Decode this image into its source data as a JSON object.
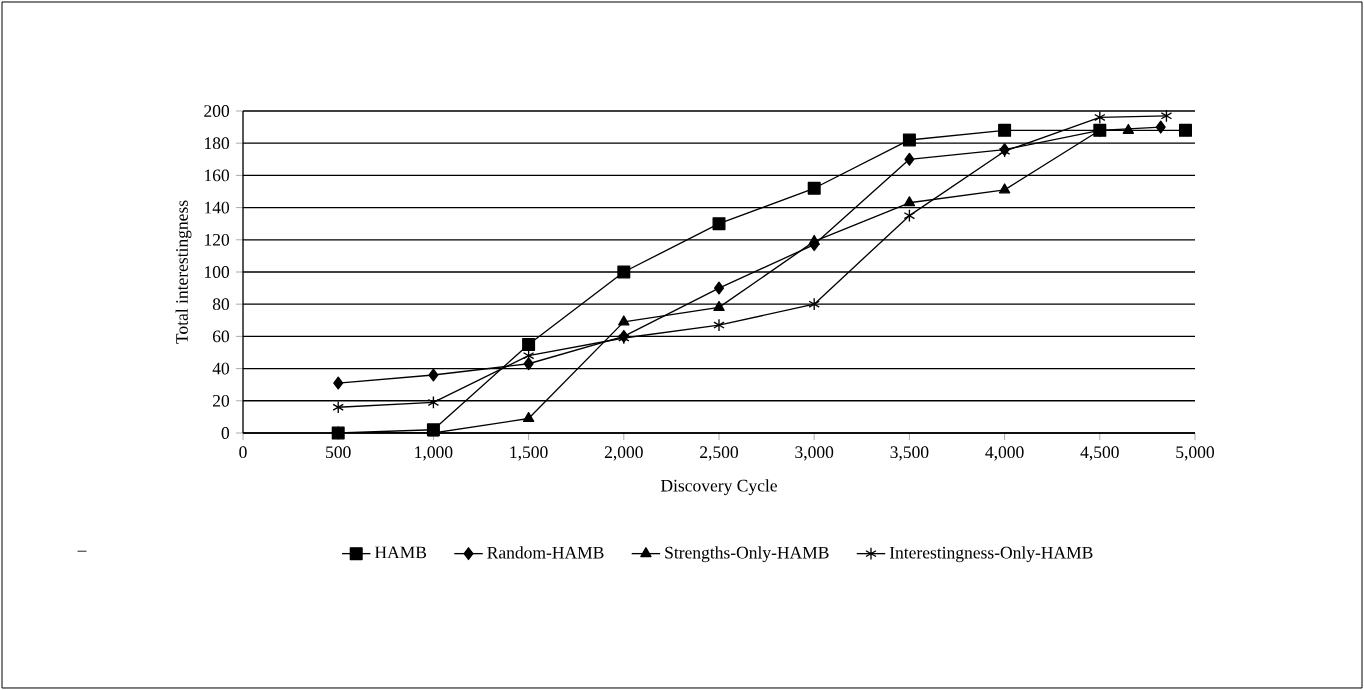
{
  "chart_data": {
    "type": "line",
    "xlabel": "Discovery Cycle",
    "ylabel": "Total interestingness",
    "xlim": [
      0,
      5000
    ],
    "ylim": [
      0,
      200
    ],
    "xticks": [
      0,
      500,
      {
        "value": 1000,
        "label": "1,000"
      },
      {
        "value": 1500,
        "label": "1,500"
      },
      {
        "value": 2000,
        "label": "2,000"
      },
      {
        "value": 2500,
        "label": "2,500"
      },
      {
        "value": 3000,
        "label": "3,000"
      },
      {
        "value": 3500,
        "label": "3,500"
      },
      {
        "value": 4000,
        "label": "4,000"
      },
      {
        "value": 4500,
        "label": "4,500"
      },
      {
        "value": 5000,
        "label": "5,000"
      }
    ],
    "yticks": [
      0,
      20,
      40,
      60,
      80,
      100,
      120,
      140,
      160,
      180,
      200
    ],
    "grid": "y",
    "legend": "bottom",
    "line_style": "solid",
    "annotations": [
      "–"
    ],
    "series": [
      {
        "name": "HAMB",
        "color": "#000000",
        "marker": "square",
        "x": [
          500,
          1000,
          1500,
          2000,
          2500,
          3000,
          3500,
          4000,
          4500,
          4950
        ],
        "values": [
          0,
          2,
          55,
          100,
          130,
          152,
          182,
          188,
          188,
          188
        ]
      },
      {
        "name": "Random-HAMB",
        "color": "#000000",
        "marker": "diamond",
        "x": [
          500,
          1000,
          1500,
          2000,
          2500,
          3000,
          3500,
          4000,
          4500,
          4820
        ],
        "values": [
          31,
          36,
          43,
          60,
          90,
          117,
          170,
          176,
          188,
          190
        ]
      },
      {
        "name": "Strengths-Only-HAMB",
        "color": "#000000",
        "marker": "triangle",
        "x": [
          500,
          1000,
          1500,
          2000,
          2500,
          3000,
          3500,
          4000,
          4500,
          4650
        ],
        "values": [
          0,
          0,
          9,
          69,
          78,
          119,
          143,
          151,
          188,
          188
        ]
      },
      {
        "name": "Interestingness-Only-HAMB",
        "color": "#000000",
        "marker": "cross",
        "x": [
          500,
          1000,
          1500,
          2000,
          2500,
          3000,
          3500,
          4000,
          4500,
          4850
        ],
        "values": [
          16,
          19,
          48,
          59,
          67,
          80,
          135,
          175,
          196,
          197
        ]
      }
    ]
  }
}
